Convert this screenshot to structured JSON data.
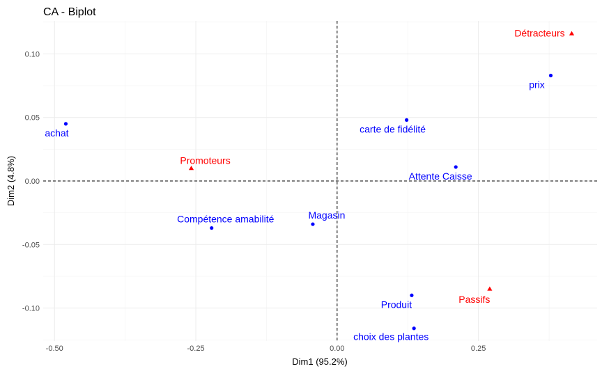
{
  "chart_data": {
    "type": "scatter",
    "title": "CA - Biplot",
    "xlabel": "Dim1 (95.2%)",
    "ylabel": "Dim2 (4.8%)",
    "xlim": [
      -0.52,
      0.46
    ],
    "ylim": [
      -0.126,
      0.126
    ],
    "x_ticks": [
      -0.5,
      -0.25,
      0.0,
      0.25
    ],
    "x_tick_labels": [
      "-0.50",
      "-0.25",
      "0.00",
      "0.25"
    ],
    "y_ticks": [
      -0.1,
      -0.05,
      0.0,
      0.05,
      0.1
    ],
    "y_tick_labels": [
      "-0.10",
      "-0.05",
      "0.00",
      "0.05",
      "0.10"
    ],
    "grid": true,
    "reference_lines": {
      "x": 0,
      "y": 0,
      "style": "dashed"
    },
    "colors": {
      "rows": "#0000ff",
      "columns": "#ff0000"
    },
    "series": [
      {
        "marker": "circle",
        "color": "#0000ff",
        "points": [
          {
            "label": "achat",
            "x": -0.48,
            "y": 0.045
          },
          {
            "label": "prix",
            "x": 0.378,
            "y": 0.083
          },
          {
            "label": "carte de fidélité",
            "x": 0.123,
            "y": 0.048
          },
          {
            "label": "Attente Caisse",
            "x": 0.21,
            "y": 0.011
          },
          {
            "label": "Compétence amabilité",
            "x": -0.222,
            "y": -0.037
          },
          {
            "label": "Magasin",
            "x": -0.043,
            "y": -0.034
          },
          {
            "label": "Produit",
            "x": 0.132,
            "y": -0.09
          },
          {
            "label": "choix des plantes",
            "x": 0.136,
            "y": -0.116
          }
        ]
      },
      {
        "marker": "triangle",
        "color": "#ff0000",
        "points": [
          {
            "label": "Détracteurs",
            "x": 0.415,
            "y": 0.116
          },
          {
            "label": "Promoteurs",
            "x": -0.258,
            "y": 0.01
          },
          {
            "label": "Passifs",
            "x": 0.27,
            "y": -0.085
          }
        ]
      }
    ]
  }
}
